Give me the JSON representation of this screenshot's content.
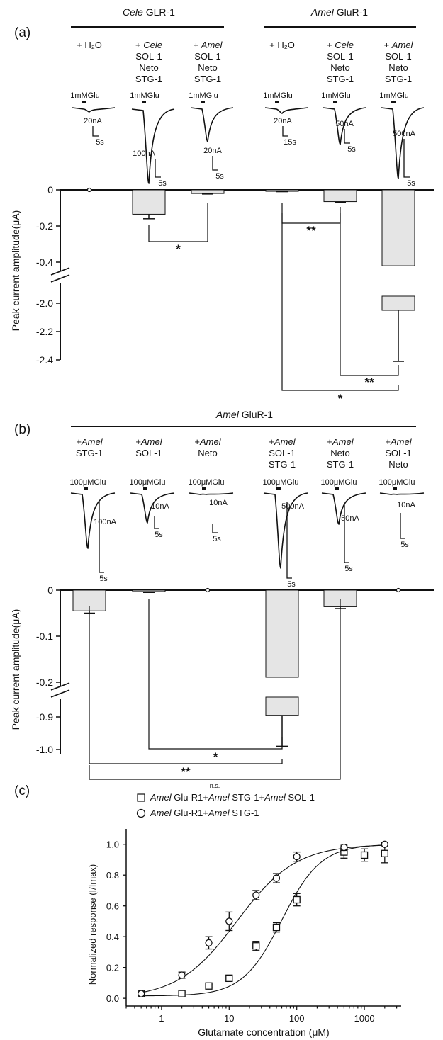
{
  "colors": {
    "bar_fill": "#e5e5e5",
    "ink": "#111111"
  },
  "panel_a": {
    "label": "(a)",
    "group_left": "GLR-1",
    "group_left_species": "Cele",
    "group_right": "GluR-1",
    "group_right_species": "Amel",
    "conditions": [
      {
        "lines": [
          "+ H₂O"
        ],
        "italic_first": false,
        "prefix_plus": false
      },
      {
        "lines": [
          "+ Cele",
          "SOL-1",
          "Neto",
          "STG-1"
        ]
      },
      {
        "lines": [
          "+ Amel",
          "SOL-1",
          "Neto",
          "STG-1"
        ]
      },
      {
        "lines": [
          "+ H₂O"
        ]
      },
      {
        "lines": [
          "+ Cele",
          "SOL-1",
          "Neto",
          "STG-1"
        ]
      },
      {
        "lines": [
          "+ Amel",
          "SOL-1",
          "Neto",
          "STG-1"
        ]
      }
    ],
    "stim_labels": [
      "1mMGlu",
      "1mMGlu",
      "1mMGlu",
      "1mMGlu",
      "1mMGlu",
      "1mMGlu"
    ],
    "scale_labels": [
      [
        "20nA",
        "5s"
      ],
      [
        "100nA",
        "5s"
      ],
      [
        "20nA",
        "5s"
      ],
      [
        "20nA",
        "15s"
      ],
      [
        "50nA",
        "5s"
      ],
      [
        "500nA",
        "5s"
      ]
    ],
    "ylabel": "Peak current amplitude(μA)",
    "yticks_upper": [
      "0",
      "-0.2",
      "-0.4"
    ],
    "yticks_lower": [
      "-2.0",
      "-2.2",
      "-2.4"
    ],
    "sig": [
      "*",
      "**",
      "**",
      "*"
    ]
  },
  "panel_b": {
    "label": "(b)",
    "group": "GluR-1",
    "group_species": "Amel",
    "conditions": [
      [
        "+Amel",
        "STG-1"
      ],
      [
        "+Amel",
        "SOL-1"
      ],
      [
        "+Amel",
        "Neto"
      ],
      [
        "+Amel",
        "SOL-1",
        "STG-1"
      ],
      [
        "+Amel",
        "Neto",
        "STG-1"
      ],
      [
        "+Amel",
        "SOL-1",
        "Neto"
      ]
    ],
    "stim_labels": [
      "100μMGlu",
      "100μMGlu",
      "100μMGlu",
      "100μMGlu",
      "100μMGlu",
      "100μMGlu"
    ],
    "scale_labels": [
      [
        "100nA",
        "5s"
      ],
      [
        "10nA",
        "5s"
      ],
      [
        "10nA",
        "5s"
      ],
      [
        "500nA",
        "5s"
      ],
      [
        "50nA",
        "5s"
      ],
      [
        "10nA",
        "5s"
      ]
    ],
    "ylabel": "Peak current amplitude(μA)",
    "yticks_upper": [
      "0",
      "-0.1",
      "-0.2"
    ],
    "yticks_lower": [
      "-0.9",
      "-1.0"
    ],
    "sig": [
      "*",
      "**",
      "n.s."
    ]
  },
  "panel_c": {
    "label": "(c)",
    "legend": [
      {
        "marker": "square",
        "species1": "Amel",
        "text1": " Glu-R1+",
        "species2": "Amel",
        "text2": " STG-1+",
        "species3": "Amel",
        "text3": " SOL-1"
      },
      {
        "marker": "circle",
        "species1": "Amel",
        "text1": " Glu-R1+",
        "species2": "Amel",
        "text2": " STG-1",
        "species3": "",
        "text3": ""
      }
    ],
    "ylabel": "Normalized response (I/Imax)",
    "xlabel": "Glutamate concentration (μM)",
    "xticks": [
      "1",
      "10",
      "100",
      "1000"
    ],
    "yticks": [
      "0.0",
      "0.2",
      "0.4",
      "0.6",
      "0.8",
      "1.0"
    ]
  },
  "chart_data": [
    {
      "type": "bar",
      "panel": "a",
      "categories": [
        "Cele GLR-1 + H2O",
        "Cele GLR-1 + Cele SOL-1 Neto STG-1",
        "Cele GLR-1 + Amel SOL-1 Neto STG-1",
        "Amel GluR-1 + H2O",
        "Amel GluR-1 + Cele SOL-1 Neto STG-1",
        "Amel GluR-1 + Amel SOL-1 Neto STG-1"
      ],
      "values": [
        0,
        -0.135,
        -0.02,
        -0.008,
        -0.065,
        -2.05
      ],
      "errors": [
        0,
        0.025,
        0.003,
        0.002,
        0.004,
        0.36
      ],
      "ylabel": "Peak current amplitude(μA)",
      "ylim": [
        -2.4,
        0
      ],
      "axis_break": [
        -0.45,
        -1.95
      ]
    },
    {
      "type": "bar",
      "panel": "b",
      "categories": [
        "+Amel STG-1",
        "+Amel SOL-1",
        "+Amel Neto",
        "+Amel SOL-1 STG-1",
        "+Amel Neto STG-1",
        "+Amel SOL-1 Neto"
      ],
      "values": [
        -0.045,
        -0.003,
        0,
        -0.895,
        -0.036,
        0
      ],
      "errors": [
        0.005,
        0.002,
        0,
        0.095,
        0.004,
        0
      ],
      "ylabel": "Peak current amplitude(μA)",
      "ylim": [
        -1.0,
        0
      ],
      "axis_break": [
        -0.24,
        -0.86
      ]
    },
    {
      "type": "scatter",
      "panel": "c",
      "xscale": "log",
      "xlim": [
        0.3,
        3500
      ],
      "ylim": [
        -0.05,
        1.1
      ],
      "xlabel": "Glutamate concentration (μM)",
      "ylabel": "Normalized response (I/Imax)",
      "series": [
        {
          "name": "Amel Glu-R1+Amel STG-1+Amel SOL-1",
          "marker": "square",
          "x": [
            0.5,
            2,
            5,
            10,
            25,
            50,
            100,
            500,
            1000,
            2000
          ],
          "y": [
            0.03,
            0.03,
            0.08,
            0.13,
            0.34,
            0.46,
            0.64,
            0.95,
            0.93,
            0.94
          ],
          "err": [
            0.01,
            0.01,
            0.01,
            0.02,
            0.03,
            0.03,
            0.04,
            0.04,
            0.04,
            0.06
          ],
          "ec50": 60,
          "hill": 1.5,
          "bottom": 0.015,
          "top": 1.0
        },
        {
          "name": "Amel Glu-R1+Amel STG-1",
          "marker": "circle",
          "x": [
            0.5,
            2,
            5,
            10,
            25,
            50,
            100,
            500,
            2000
          ],
          "y": [
            0.03,
            0.15,
            0.36,
            0.5,
            0.67,
            0.78,
            0.92,
            0.98,
            1.0
          ],
          "err": [
            0.01,
            0.02,
            0.04,
            0.06,
            0.03,
            0.03,
            0.03,
            0.02,
            0.01
          ],
          "ec50": 13,
          "hill": 1.0,
          "bottom": 0.0,
          "top": 1.0
        }
      ]
    }
  ]
}
